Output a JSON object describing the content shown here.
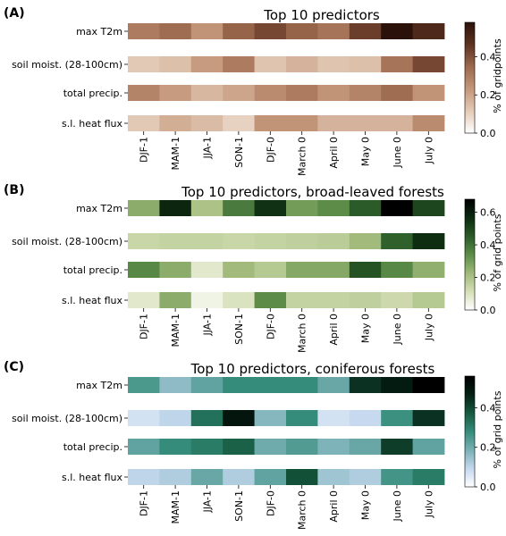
{
  "chart_data": [
    {
      "type": "heatmap",
      "panel_label": "(A)",
      "title": "Top 10 predictors",
      "rows": [
        "max T2m",
        "soil moist. (28-100cm)",
        "total precip.",
        "s.l. heat flux"
      ],
      "columns": [
        "DJF-1",
        "MAM-1",
        "JJA-1",
        "SON-1",
        "DJF-0",
        "March 0",
        "April 0",
        "May 0",
        "June 0",
        "July 0"
      ],
      "values": [
        [
          0.3,
          0.34,
          0.24,
          0.36,
          0.42,
          0.36,
          0.32,
          0.44,
          0.58,
          0.5
        ],
        [
          0.12,
          0.14,
          0.22,
          0.3,
          0.13,
          0.17,
          0.13,
          0.14,
          0.32,
          0.42
        ],
        [
          0.28,
          0.22,
          0.16,
          0.2,
          0.26,
          0.3,
          0.24,
          0.28,
          0.34,
          0.24
        ],
        [
          0.12,
          0.18,
          0.15,
          0.1,
          0.24,
          0.24,
          0.17,
          0.17,
          0.17,
          0.26
        ]
      ],
      "colorbar": {
        "label": "% of gridpoints",
        "ticks": [
          "0.0",
          "0.2",
          "0.4"
        ],
        "range": [
          0,
          0.58
        ]
      },
      "colormap": [
        "#ffffff",
        "#e3cbb7",
        "#c4967a",
        "#9c6a4e",
        "#5e3322",
        "#2a120a"
      ]
    },
    {
      "type": "heatmap",
      "panel_label": "(B)",
      "title": "Top 10 predictors, broad-leaved forests",
      "rows": [
        "max T2m",
        "soil moist. (28-100cm)",
        "total precip.",
        "s.l. heat flux"
      ],
      "columns": [
        "DJF-1",
        "MAM-1",
        "JJA-1",
        "SON-1",
        "DJF-0",
        "March 0",
        "April 0",
        "May 0",
        "June 0",
        "July 0"
      ],
      "values": [
        [
          0.26,
          0.58,
          0.2,
          0.38,
          0.55,
          0.3,
          0.34,
          0.45,
          0.68,
          0.5
        ],
        [
          0.14,
          0.15,
          0.15,
          0.14,
          0.15,
          0.16,
          0.17,
          0.22,
          0.44,
          0.56
        ],
        [
          0.35,
          0.26,
          0.08,
          0.22,
          0.18,
          0.27,
          0.27,
          0.47,
          0.35,
          0.25
        ],
        [
          0.08,
          0.26,
          0.04,
          0.1,
          0.34,
          0.15,
          0.15,
          0.16,
          0.13,
          0.18
        ]
      ],
      "colorbar": {
        "label": "% of grid points",
        "ticks": [
          "0.0",
          "0.2",
          "0.4",
          "0.6"
        ],
        "range": [
          0,
          0.68
        ]
      },
      "colormap": [
        "#ffffff",
        "#d5dfb6",
        "#9fb979",
        "#5c8c48",
        "#2a5a28",
        "#0c2a10",
        "#000000"
      ]
    },
    {
      "type": "heatmap",
      "panel_label": "(C)",
      "title": "Top 10 predictors, coniferous forests",
      "rows": [
        "max T2m",
        "soil moist. (28-100cm)",
        "total precip.",
        "s.l. heat flux"
      ],
      "columns": [
        "DJF-1",
        "MAM-1",
        "JJA-1",
        "SON-1",
        "DJF-0",
        "March 0",
        "April 0",
        "May 0",
        "June 0",
        "July 0"
      ],
      "values": [
        [
          0.25,
          0.16,
          0.22,
          0.28,
          0.28,
          0.28,
          0.21,
          0.44,
          0.48,
          0.56
        ],
        [
          0.07,
          0.1,
          0.33,
          0.5,
          0.17,
          0.28,
          0.07,
          0.09,
          0.27,
          0.44
        ],
        [
          0.22,
          0.28,
          0.31,
          0.36,
          0.2,
          0.24,
          0.18,
          0.21,
          0.42,
          0.22
        ],
        [
          0.1,
          0.12,
          0.21,
          0.12,
          0.22,
          0.39,
          0.14,
          0.12,
          0.26,
          0.31
        ]
      ],
      "colorbar": {
        "label": "% of grid points",
        "ticks": [
          "0.0",
          "0.2",
          "0.4"
        ],
        "range": [
          0,
          0.56
        ]
      },
      "colormap": [
        "#ffffff",
        "#c4d8ee",
        "#79b0b5",
        "#358c7a",
        "#165a40",
        "#052014",
        "#000000"
      ]
    }
  ]
}
